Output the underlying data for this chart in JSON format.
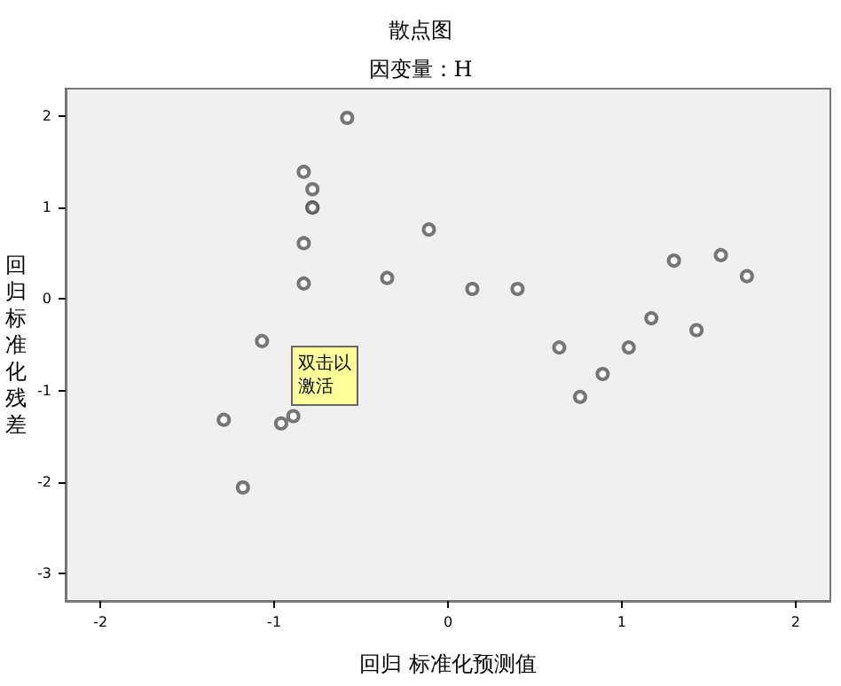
{
  "chart_data": {
    "type": "scatter",
    "title": "散点图",
    "subtitle": "因变量：H",
    "xlabel": "回归 标准化预测值",
    "ylabel": "回归标准化残差",
    "annotations": [
      "双击以激活"
    ],
    "x": [
      -0.58,
      -0.83,
      -0.78,
      -0.78,
      -0.78,
      -0.83,
      -0.83,
      -0.11,
      -0.35,
      -1.07,
      -1.29,
      -0.96,
      -0.89,
      -1.18,
      0.14,
      0.4,
      0.64,
      0.76,
      0.89,
      1.04,
      1.17,
      1.3,
      1.43,
      1.57,
      1.72
    ],
    "series": [
      {
        "color": "#555555",
        "values": [
          1.98,
          1.39,
          1.2,
          1.0,
          1.0,
          0.61,
          0.17,
          0.76,
          0.23,
          -0.46,
          -1.32,
          -1.36,
          -1.28,
          -2.06,
          0.11,
          0.11,
          -0.53,
          -1.07,
          -0.82,
          -0.53,
          -0.21,
          0.42,
          -0.34,
          0.48,
          0.25
        ]
      }
    ],
    "xlim": [
      -2.2,
      2.2
    ],
    "xticks": [
      -2,
      -1,
      0,
      1,
      2
    ],
    "ylim": [
      -3.3,
      2.3
    ],
    "yticks": [
      -3,
      -2,
      -1,
      0,
      1,
      2
    ],
    "grid": false,
    "marker": "circle"
  }
}
